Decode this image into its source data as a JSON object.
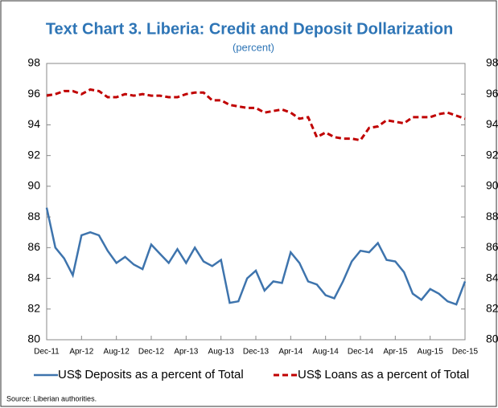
{
  "chart_data": {
    "type": "line",
    "title": "Text Chart 3. Liberia: Credit and Deposit Dollarization",
    "subtitle": "(percent)",
    "categories": [
      "Dec-11",
      null,
      null,
      null,
      "Apr-12",
      null,
      null,
      null,
      "Aug-12",
      null,
      null,
      null,
      "Dec-12",
      null,
      null,
      null,
      "Apr-13",
      null,
      null,
      null,
      "Aug-13",
      null,
      null,
      null,
      "Dec-13",
      null,
      null,
      null,
      "Apr-14",
      null,
      null,
      null,
      "Aug-14",
      null,
      null,
      null,
      "Dec-14",
      null,
      null,
      null,
      "Apr-15",
      null,
      null,
      null,
      "Aug-15",
      null,
      null,
      null,
      "Dec-15"
    ],
    "series": [
      {
        "name": "US$ Deposits as a percent of Total",
        "color": "#3e74ad",
        "dash": false,
        "values": [
          88.6,
          86.0,
          85.3,
          84.2,
          86.8,
          87.0,
          86.8,
          85.8,
          85.0,
          85.4,
          84.9,
          84.6,
          86.2,
          85.6,
          85.0,
          85.9,
          85.0,
          86.0,
          85.1,
          84.8,
          85.2,
          82.4,
          82.5,
          84.0,
          84.5,
          83.2,
          83.8,
          83.7,
          85.7,
          85.0,
          83.8,
          83.6,
          82.9,
          82.7,
          83.8,
          85.1,
          85.8,
          85.7,
          86.3,
          85.2,
          85.1,
          84.4,
          83.0,
          82.6,
          83.3,
          83.0,
          82.5,
          82.3,
          83.8
        ]
      },
      {
        "name": "US$ Loans as a percent of Total",
        "color": "#c00000",
        "dash": true,
        "values": [
          95.9,
          96.0,
          96.2,
          96.2,
          96.0,
          96.3,
          96.2,
          95.8,
          95.8,
          96.0,
          95.9,
          96.0,
          95.9,
          95.9,
          95.8,
          95.8,
          96.0,
          96.1,
          96.1,
          95.6,
          95.6,
          95.3,
          95.2,
          95.1,
          95.1,
          94.8,
          94.9,
          95.0,
          94.8,
          94.4,
          94.5,
          93.2,
          93.5,
          93.2,
          93.1,
          93.1,
          93.0,
          93.8,
          93.9,
          94.3,
          94.2,
          94.1,
          94.5,
          94.5,
          94.5,
          94.7,
          94.8,
          94.6,
          94.4
        ]
      }
    ],
    "ylim": [
      80,
      98
    ],
    "yticks": [
      80,
      82,
      84,
      86,
      88,
      90,
      92,
      94,
      96,
      98
    ],
    "y2lim": [
      80,
      98
    ],
    "y2ticks": [
      80,
      82,
      84,
      86,
      88,
      90,
      92,
      94,
      96,
      98
    ],
    "legend": "bottom",
    "source": "Source:  Liberian authorities."
  }
}
